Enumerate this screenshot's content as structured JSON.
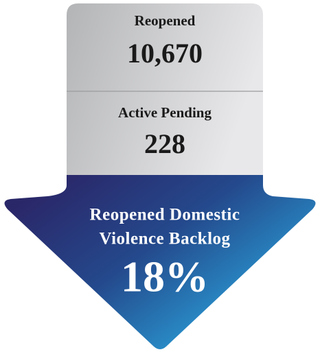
{
  "panels": [
    {
      "label": "Reopened",
      "value": "10,670"
    },
    {
      "label": "Active Pending",
      "value": "228"
    }
  ],
  "arrow": {
    "title_lines": [
      "Reopened Domestic",
      "Violence Backlog"
    ],
    "value": "18%"
  }
}
